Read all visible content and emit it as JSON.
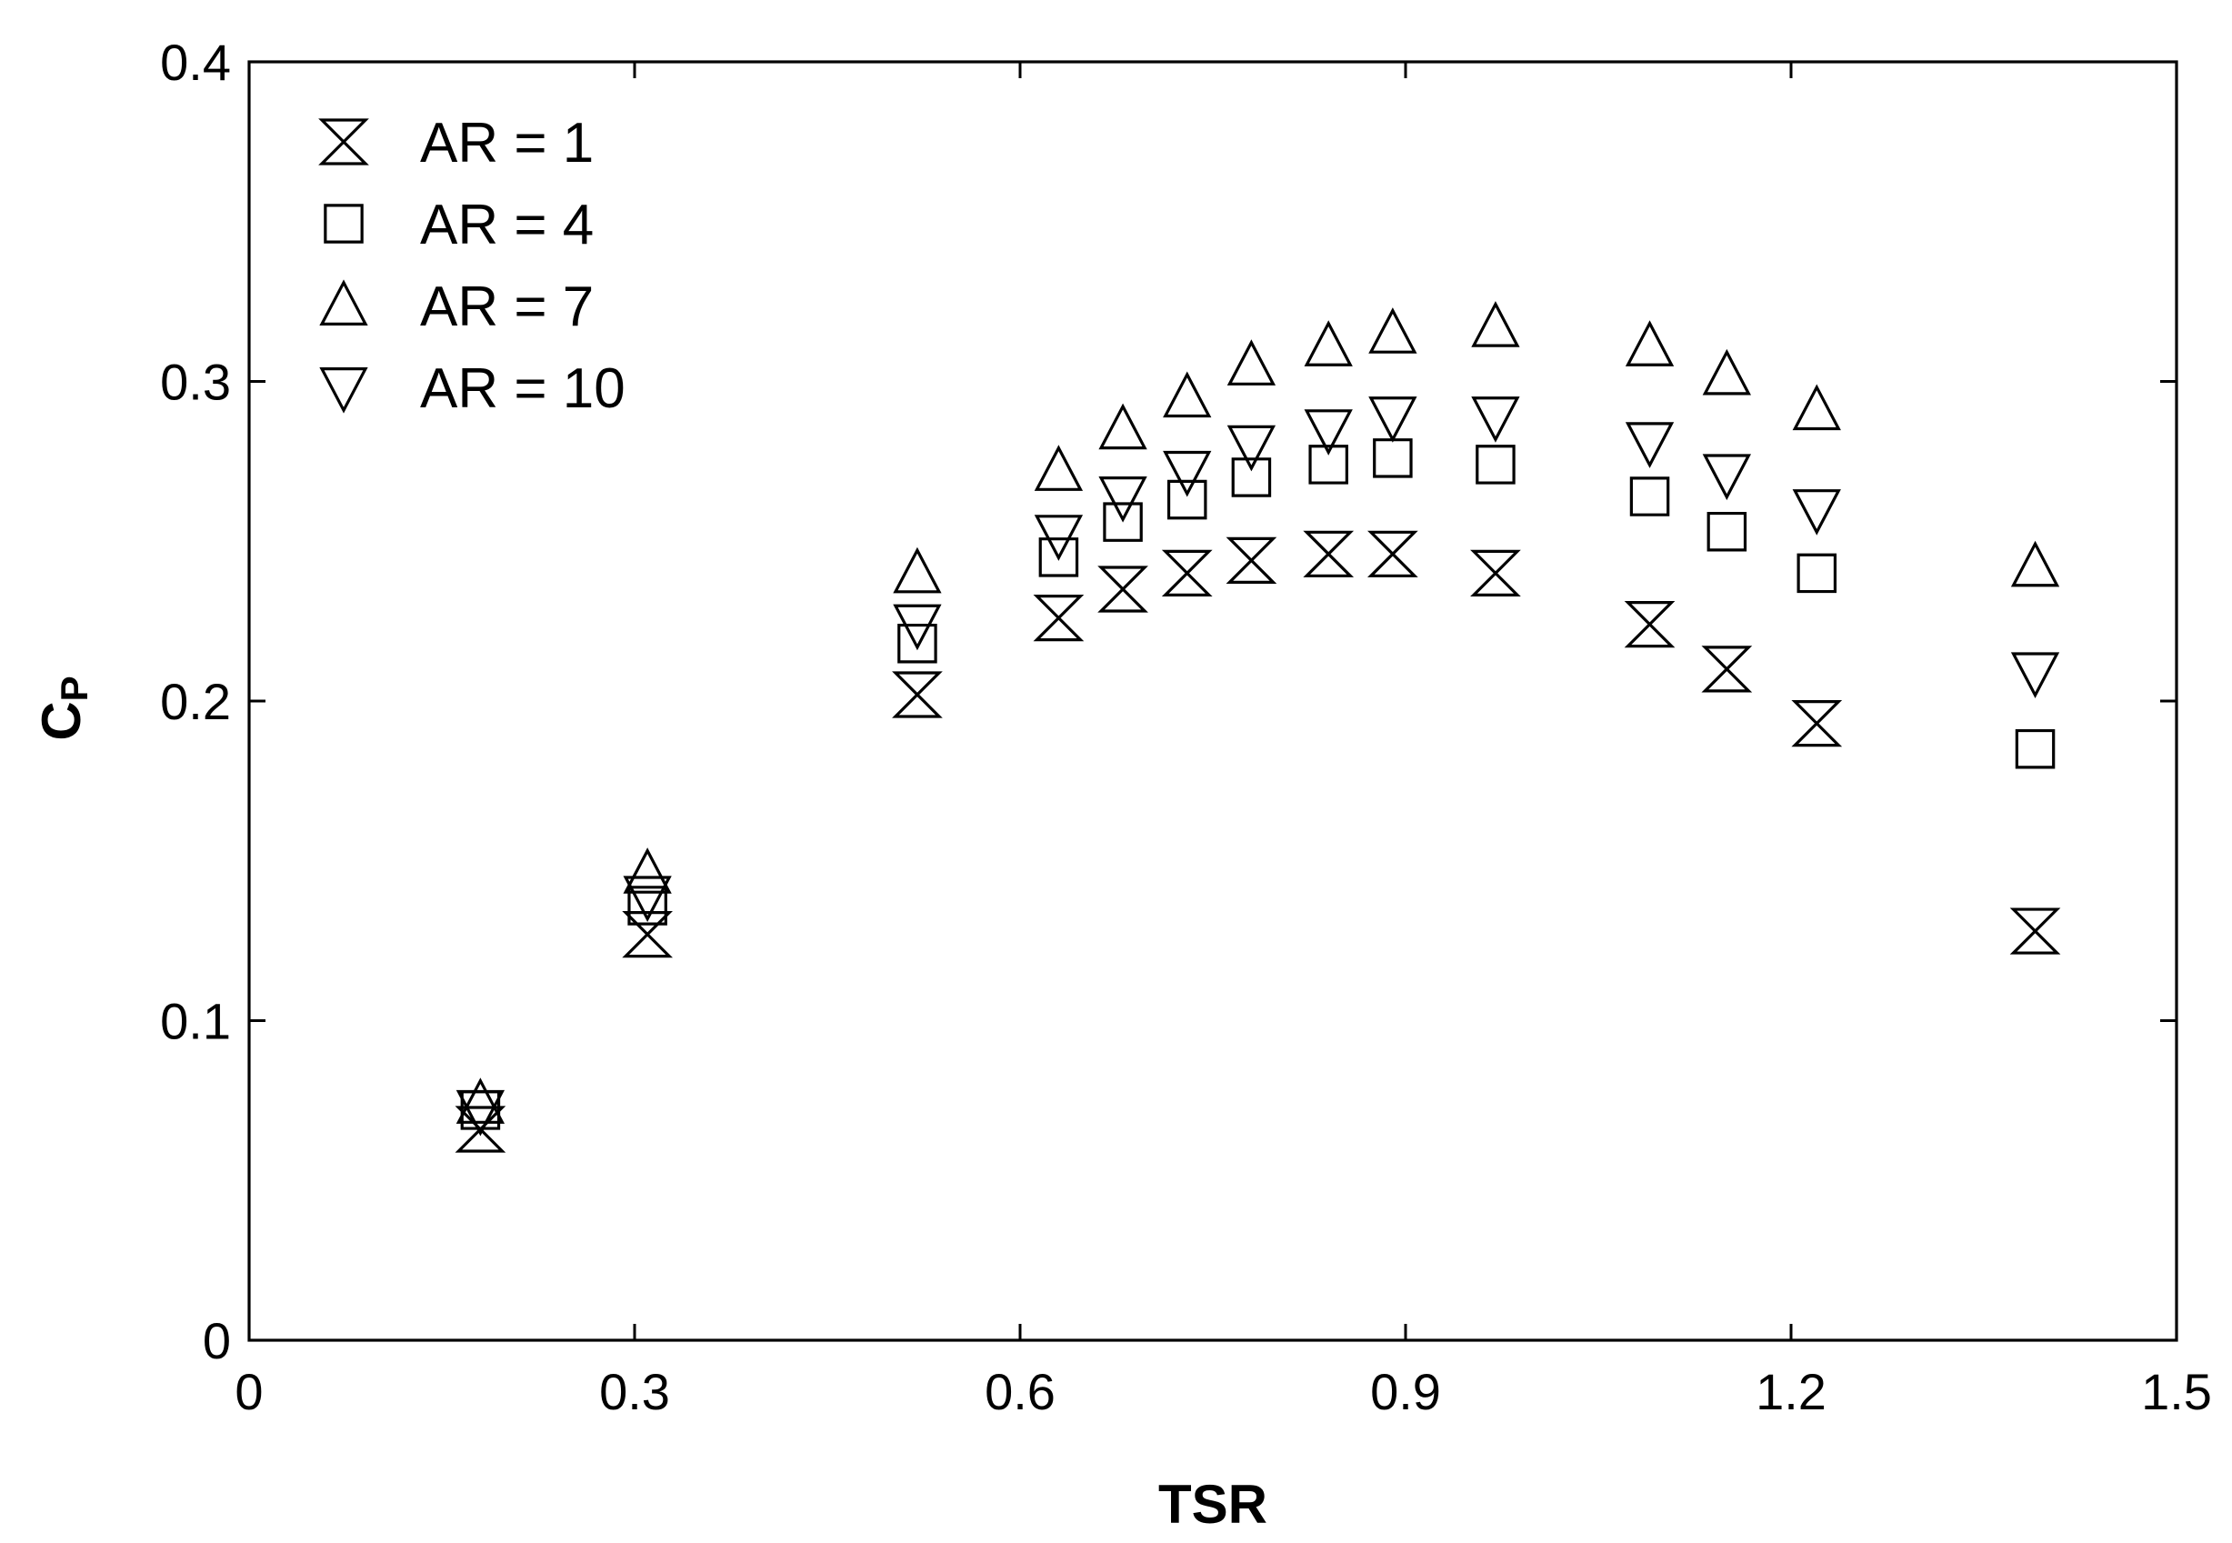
{
  "chart_data": {
    "type": "scatter",
    "title": "",
    "xlabel": "TSR",
    "ylabel_main": "C",
    "ylabel_sub": "P",
    "xlim": [
      0,
      1.5
    ],
    "ylim": [
      0,
      0.4
    ],
    "xticks": [
      0,
      0.3,
      0.6,
      0.9,
      1.2,
      1.5
    ],
    "xtick_labels": [
      "0",
      "0.3",
      "0.6",
      "0.9",
      "1.2",
      "1.5"
    ],
    "yticks": [
      0,
      0.1,
      0.2,
      0.3,
      0.4
    ],
    "ytick_labels": [
      "0",
      "0.1",
      "0.2",
      "0.3",
      "0.4"
    ],
    "grid": false,
    "legend_position": "top-left",
    "x": [
      0.18,
      0.31,
      0.52,
      0.63,
      0.68,
      0.73,
      0.78,
      0.84,
      0.89,
      0.97,
      1.09,
      1.15,
      1.22,
      1.39
    ],
    "series": [
      {
        "name": "AR = 1",
        "marker": "hourglass",
        "values": [
          0.066,
          0.127,
          0.202,
          0.226,
          0.235,
          0.24,
          0.244,
          0.246,
          0.246,
          0.24,
          0.224,
          0.21,
          0.193,
          0.128
        ]
      },
      {
        "name": "AR = 4",
        "marker": "square",
        "values": [
          0.072,
          0.136,
          0.218,
          0.245,
          0.256,
          0.263,
          0.27,
          0.274,
          0.276,
          0.274,
          0.264,
          0.253,
          0.24,
          0.185
        ]
      },
      {
        "name": "AR = 7",
        "marker": "triangle-up",
        "values": [
          0.074,
          0.146,
          0.24,
          0.272,
          0.285,
          0.295,
          0.305,
          0.311,
          0.315,
          0.317,
          0.311,
          0.302,
          0.291,
          0.242
        ]
      },
      {
        "name": "AR = 10",
        "marker": "triangle-down",
        "values": [
          0.072,
          0.139,
          0.224,
          0.252,
          0.264,
          0.272,
          0.28,
          0.285,
          0.289,
          0.289,
          0.281,
          0.271,
          0.26,
          0.209
        ]
      }
    ]
  }
}
